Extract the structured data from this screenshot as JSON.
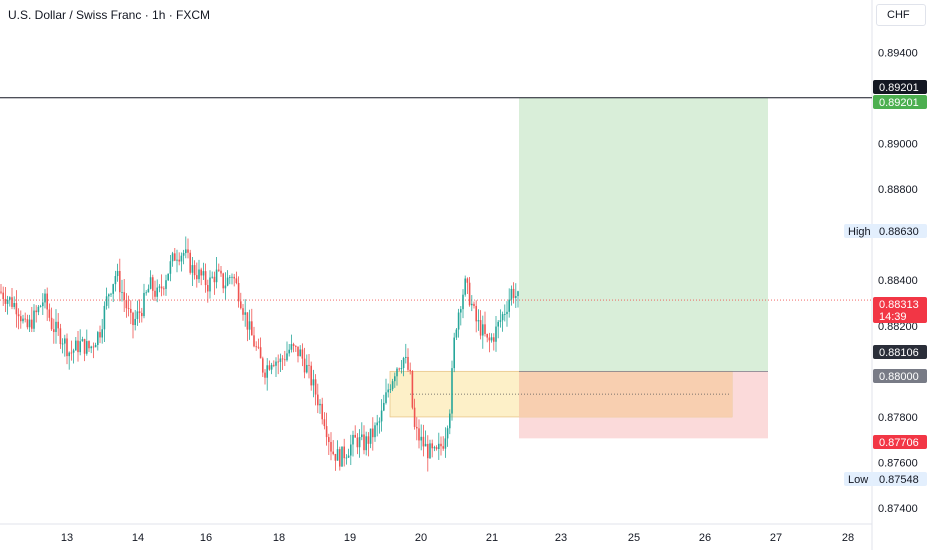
{
  "header": {
    "title": "U.S. Dollar / Swiss Franc · 1h · FXCM",
    "currency": "CHF"
  },
  "chart_data": {
    "type": "candlestick",
    "title": "U.S. Dollar / Swiss Franc · 1h · FXCM",
    "ylim": [
      0.8733,
      0.8963
    ],
    "y_ticks": [
      "0.89400",
      "0.89000",
      "0.88800",
      "0.88400",
      "0.88200",
      "0.87800",
      "0.87600",
      "0.87400"
    ],
    "x_ticks": [
      "13",
      "14",
      "16",
      "18",
      "19",
      "20",
      "21",
      "23",
      "25",
      "26",
      "27",
      "28"
    ],
    "grid": false,
    "close_path": [
      [
        0,
        0.8835
      ],
      [
        8,
        0.8832
      ],
      [
        18,
        0.8828
      ],
      [
        26,
        0.8818
      ],
      [
        36,
        0.8825
      ],
      [
        44,
        0.8832
      ],
      [
        52,
        0.882
      ],
      [
        62,
        0.8815
      ],
      [
        70,
        0.8808
      ],
      [
        80,
        0.8812
      ],
      [
        90,
        0.881
      ],
      [
        100,
        0.8818
      ],
      [
        108,
        0.8834
      ],
      [
        116,
        0.8843
      ],
      [
        124,
        0.8832
      ],
      [
        132,
        0.882
      ],
      [
        142,
        0.8828
      ],
      [
        150,
        0.8838
      ],
      [
        158,
        0.8833
      ],
      [
        166,
        0.8842
      ],
      [
        176,
        0.8852
      ],
      [
        184,
        0.8852
      ],
      [
        192,
        0.8845
      ],
      [
        200,
        0.8842
      ],
      [
        208,
        0.8838
      ],
      [
        216,
        0.8843
      ],
      [
        224,
        0.8838
      ],
      [
        232,
        0.8843
      ],
      [
        240,
        0.8833
      ],
      [
        248,
        0.882
      ],
      [
        256,
        0.881
      ],
      [
        264,
        0.88
      ],
      [
        272,
        0.8806
      ],
      [
        280,
        0.8804
      ],
      [
        290,
        0.881
      ],
      [
        300,
        0.8808
      ],
      [
        308,
        0.88
      ],
      [
        316,
        0.879
      ],
      [
        324,
        0.878
      ],
      [
        332,
        0.8765
      ],
      [
        340,
        0.8762
      ],
      [
        348,
        0.8766
      ],
      [
        356,
        0.877
      ],
      [
        364,
        0.8768
      ],
      [
        372,
        0.8772
      ],
      [
        380,
        0.8778
      ],
      [
        388,
        0.8792
      ],
      [
        396,
        0.8802
      ],
      [
        404,
        0.8806
      ],
      [
        410,
        0.8798
      ],
      [
        414,
        0.8775
      ],
      [
        420,
        0.877
      ],
      [
        428,
        0.8765
      ],
      [
        436,
        0.8763
      ],
      [
        444,
        0.877
      ],
      [
        450,
        0.8785
      ],
      [
        455,
        0.8818
      ],
      [
        460,
        0.883
      ],
      [
        465,
        0.8838
      ],
      [
        470,
        0.8832
      ],
      [
        476,
        0.8822
      ],
      [
        482,
        0.8818
      ],
      [
        488,
        0.8812
      ],
      [
        494,
        0.8816
      ],
      [
        500,
        0.8822
      ],
      [
        506,
        0.8828
      ],
      [
        512,
        0.8836
      ],
      [
        519,
        0.8831
      ]
    ],
    "annotations": {
      "high": {
        "label": "High",
        "value": "0.88630"
      },
      "low": {
        "label": "Low",
        "value": "0.87548"
      },
      "current": {
        "value": "0.88313",
        "countdown": "14:39"
      },
      "horizontal_line": {
        "value": "0.89201"
      },
      "long_position": {
        "entry": "0.88000",
        "stop": "0.87706",
        "target": "0.89201"
      },
      "marker": {
        "value": "0.88106"
      },
      "demand_zone": {
        "top": 0.88,
        "bottom": 0.878,
        "mid": 0.879
      }
    },
    "colors": {
      "up": "#26a69a",
      "down": "#ef5350",
      "profit": "#d9eed9",
      "loss": "#fbdada",
      "zone": "#fdf0c8",
      "overlap": "#f8cfb0"
    }
  }
}
